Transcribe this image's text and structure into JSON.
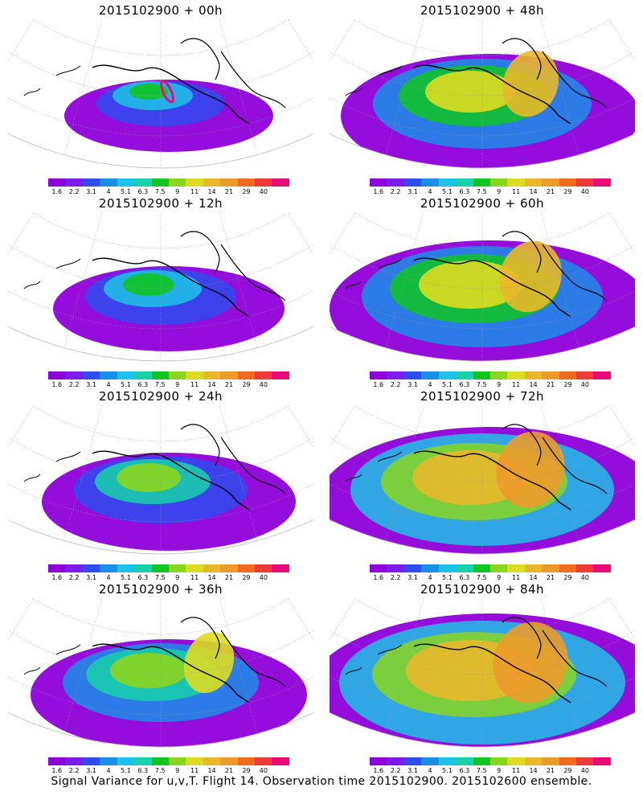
{
  "footer": "Signal Variance for u,v,T. Flight 14. Observation time 2015102900. 2015102600 ensemble.",
  "colorbar": {
    "colors": [
      "#8e00d9",
      "#7a1cf2",
      "#2e4cf0",
      "#1b8fe8",
      "#1ec2e6",
      "#18d1a9",
      "#10c421",
      "#8ad61e",
      "#dcdc20",
      "#e8b82a",
      "#ec9b2a",
      "#f06a20",
      "#ee3a3a",
      "#ec0a78"
    ],
    "labels": [
      "1.6",
      "2.2",
      "3.1",
      "4",
      "5.1",
      "6.3",
      "7.5",
      "9",
      "11",
      "14",
      "21",
      "29",
      "40"
    ]
  },
  "panels": [
    {
      "title": "2015102900 + 00h",
      "level": 0
    },
    {
      "title": "2015102900 + 48h",
      "level": 4
    },
    {
      "title": "2015102900 + 12h",
      "level": 1
    },
    {
      "title": "2015102900 + 60h",
      "level": 5
    },
    {
      "title": "2015102900 + 24h",
      "level": 2
    },
    {
      "title": "2015102900 + 72h",
      "level": 6
    },
    {
      "title": "2015102900 + 36h",
      "level": 3
    },
    {
      "title": "2015102900 + 84h",
      "level": 7
    }
  ]
}
